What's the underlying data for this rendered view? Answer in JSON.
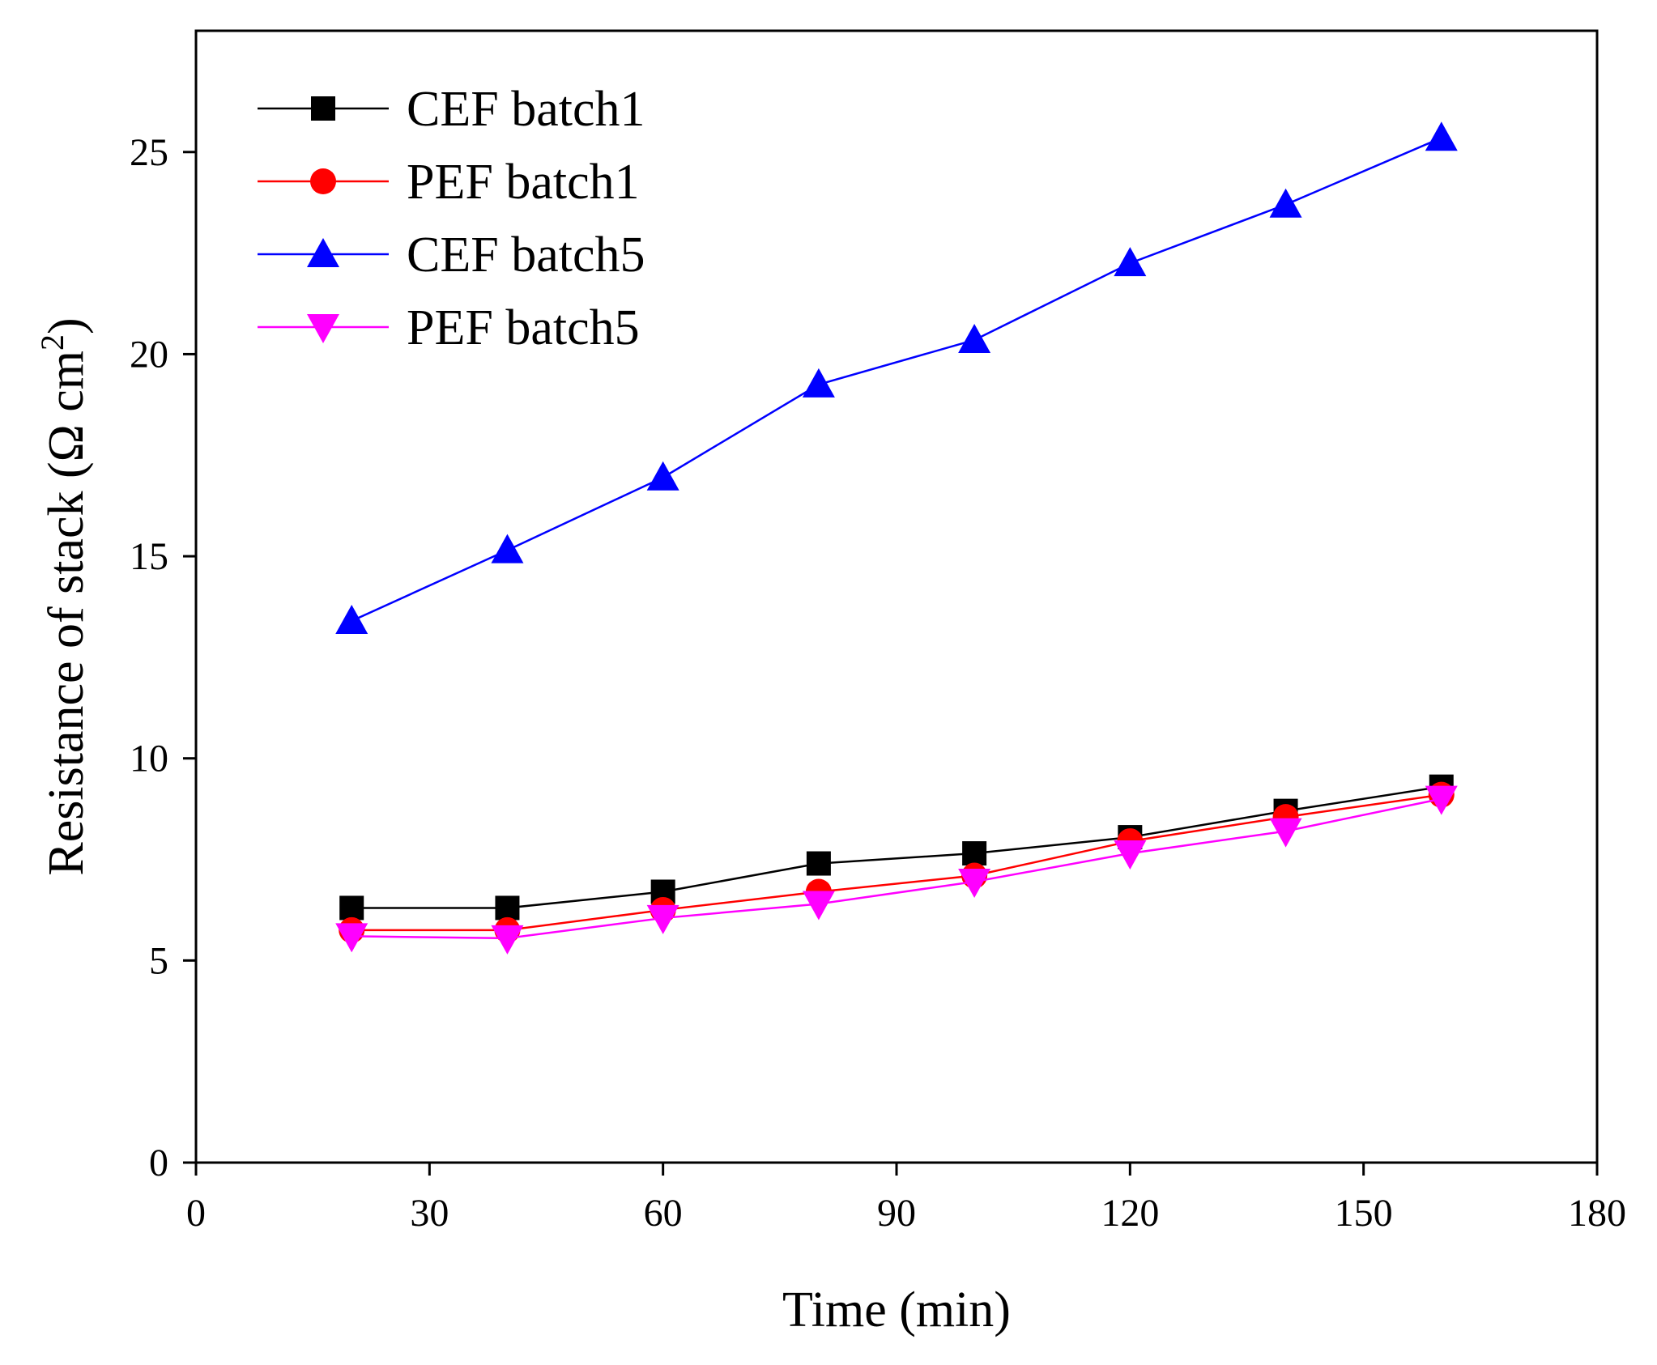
{
  "chart_data": {
    "type": "line",
    "title": "",
    "xlabel": "Time (min)",
    "ylabel": "Resistance of stack (Ω cm2)",
    "ylabel_main": "Resistance of stack (Ω cm",
    "ylabel_sup": "2",
    "ylabel_close": ")",
    "xlim": [
      0,
      180
    ],
    "ylim": [
      0,
      28
    ],
    "xticks": [
      0,
      30,
      60,
      90,
      120,
      150,
      180
    ],
    "yticks": [
      0,
      5,
      10,
      15,
      20,
      25
    ],
    "grid": false,
    "legend_position": "top-left",
    "x": [
      20,
      40,
      60,
      80,
      100,
      120,
      140,
      160
    ],
    "series": [
      {
        "name": "CEF batch1",
        "color": "#000000",
        "marker": "square",
        "values": [
          6.3,
          6.3,
          6.7,
          7.4,
          7.65,
          8.05,
          8.7,
          9.3
        ]
      },
      {
        "name": "PEF batch1",
        "color": "#ff0000",
        "marker": "circle",
        "values": [
          5.75,
          5.75,
          6.25,
          6.7,
          7.1,
          7.95,
          8.55,
          9.1
        ]
      },
      {
        "name": "CEF batch5",
        "color": "#0000ff",
        "marker": "triangle-up",
        "values": [
          13.4,
          15.15,
          16.95,
          19.25,
          20.35,
          22.25,
          23.7,
          25.35
        ]
      },
      {
        "name": "PEF batch5",
        "color": "#ff00ff",
        "marker": "triangle-down",
        "values": [
          5.6,
          5.55,
          6.05,
          6.4,
          6.95,
          7.65,
          8.2,
          9.0
        ]
      }
    ]
  }
}
